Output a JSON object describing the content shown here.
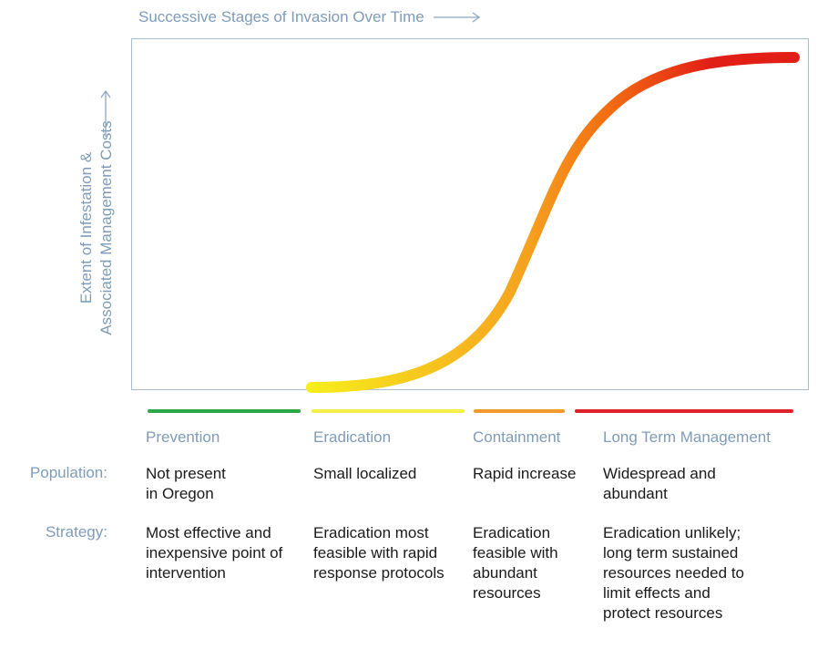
{
  "x_axis": {
    "title": "Successive Stages of Invasion Over Time"
  },
  "y_axis": {
    "title_lines": [
      "Extent of Infestation &",
      "Associated Management Costs"
    ]
  },
  "curve": {
    "shape": "sigmoid",
    "gradient_colors": [
      "#f7ee1c",
      "#f5a11f",
      "#f26a12",
      "#e21f16"
    ]
  },
  "stages": [
    {
      "name": "Prevention",
      "color": "#2aa84a",
      "population": "Not present\nin Oregon",
      "strategy": "Most effective and\ninexpensive point of\nintervention"
    },
    {
      "name": "Eradication",
      "color": "#f6ec4a",
      "population": "Small localized",
      "strategy": "Eradication most\nfeasible with rapid\nresponse protocols"
    },
    {
      "name": "Containment",
      "color": "#f3982c",
      "population": "Rapid increase",
      "strategy": "Eradication\nfeasible with\nabundant\nresources"
    },
    {
      "name": "Long Term Management",
      "color": "#e0202a",
      "population": "Widespread and\nabundant",
      "strategy": "Eradication unlikely;\nlong term sustained\nresources needed to\nlimit effects and\nprotect resources"
    }
  ],
  "row_labels": {
    "population": "Population:",
    "strategy": "Strategy:"
  }
}
